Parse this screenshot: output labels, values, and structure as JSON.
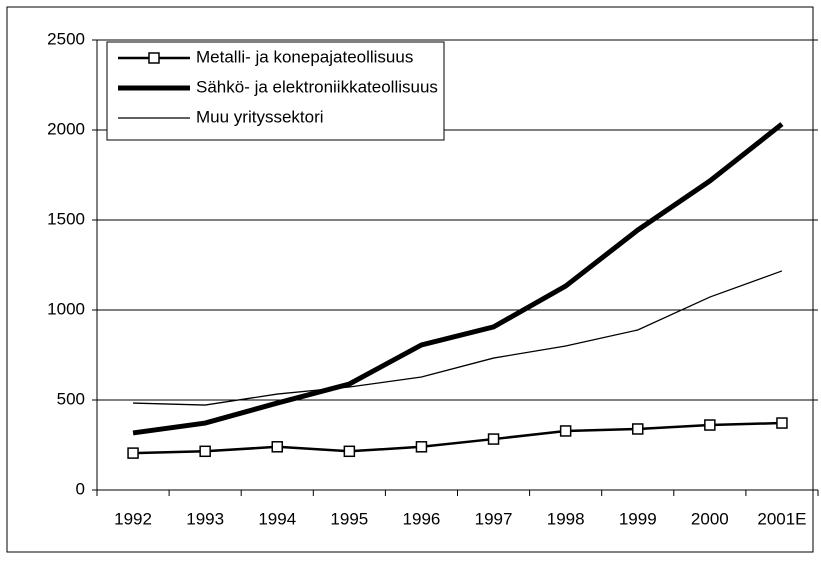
{
  "chart_data": {
    "type": "line",
    "categories": [
      "1992",
      "1993",
      "1994",
      "1995",
      "1996",
      "1997",
      "1998",
      "1999",
      "2000",
      "2001E"
    ],
    "series": [
      {
        "name": "Metalli- ja konepajateollisuus",
        "color": "#000000",
        "values": [
          205,
          215,
          240,
          215,
          240,
          283,
          328,
          339,
          361,
          372
        ]
      },
      {
        "name": "Sähkö- ja elektroniikkateollisuus",
        "color": "#000000",
        "values": [
          317,
          372,
          483,
          589,
          806,
          906,
          1133,
          1444,
          1717,
          2033
        ]
      },
      {
        "name": "Muu yrityssektori",
        "color": "#000000",
        "values": [
          483,
          472,
          533,
          572,
          628,
          733,
          800,
          889,
          1072,
          1217
        ]
      }
    ],
    "ylim": [
      0,
      2500
    ],
    "yticks": [
      0,
      500,
      1000,
      1500,
      2000,
      2500
    ],
    "grid": true,
    "legend": "top-left"
  }
}
